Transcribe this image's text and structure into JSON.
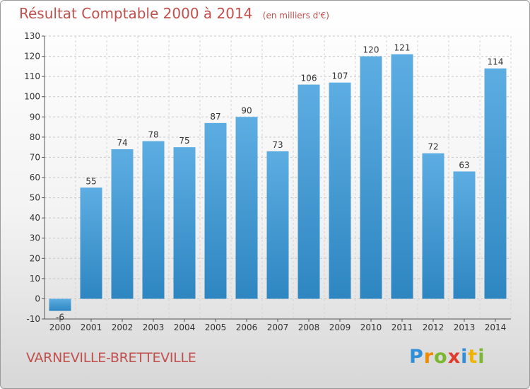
{
  "header": {
    "title": "Résultat Comptable 2000 à 2014",
    "unit": "(en milliers d'€)"
  },
  "footer": {
    "commune": "VARNEVILLE-BRETTEVILLE"
  },
  "logo": {
    "text": "Proxiti",
    "letters": [
      {
        "ch": "P",
        "color": "#2f8fd8"
      },
      {
        "ch": "r",
        "color": "#f08a00"
      },
      {
        "ch": "o",
        "color": "#7cb82f"
      },
      {
        "ch": "x",
        "color": "#e03a2f"
      },
      {
        "ch": "i",
        "color": "#2f8fd8"
      },
      {
        "ch": "t",
        "color": "#f0b400"
      },
      {
        "ch": "i",
        "color": "#7cb82f"
      }
    ]
  },
  "chart_data": {
    "type": "bar",
    "categories": [
      "2000",
      "2001",
      "2002",
      "2003",
      "2004",
      "2005",
      "2006",
      "2007",
      "2008",
      "2009",
      "2010",
      "2011",
      "2012",
      "2013",
      "2014"
    ],
    "values": [
      -6,
      55,
      74,
      78,
      75,
      87,
      90,
      73,
      106,
      107,
      120,
      121,
      72,
      63,
      114
    ],
    "yticks": [
      -10,
      0,
      10,
      20,
      30,
      40,
      50,
      60,
      70,
      80,
      90,
      100,
      110,
      120,
      130
    ],
    "ylim": [
      -10,
      130
    ],
    "grid": true,
    "bar_color_top": "#5dade2",
    "bar_color_bottom": "#2e86c1"
  }
}
